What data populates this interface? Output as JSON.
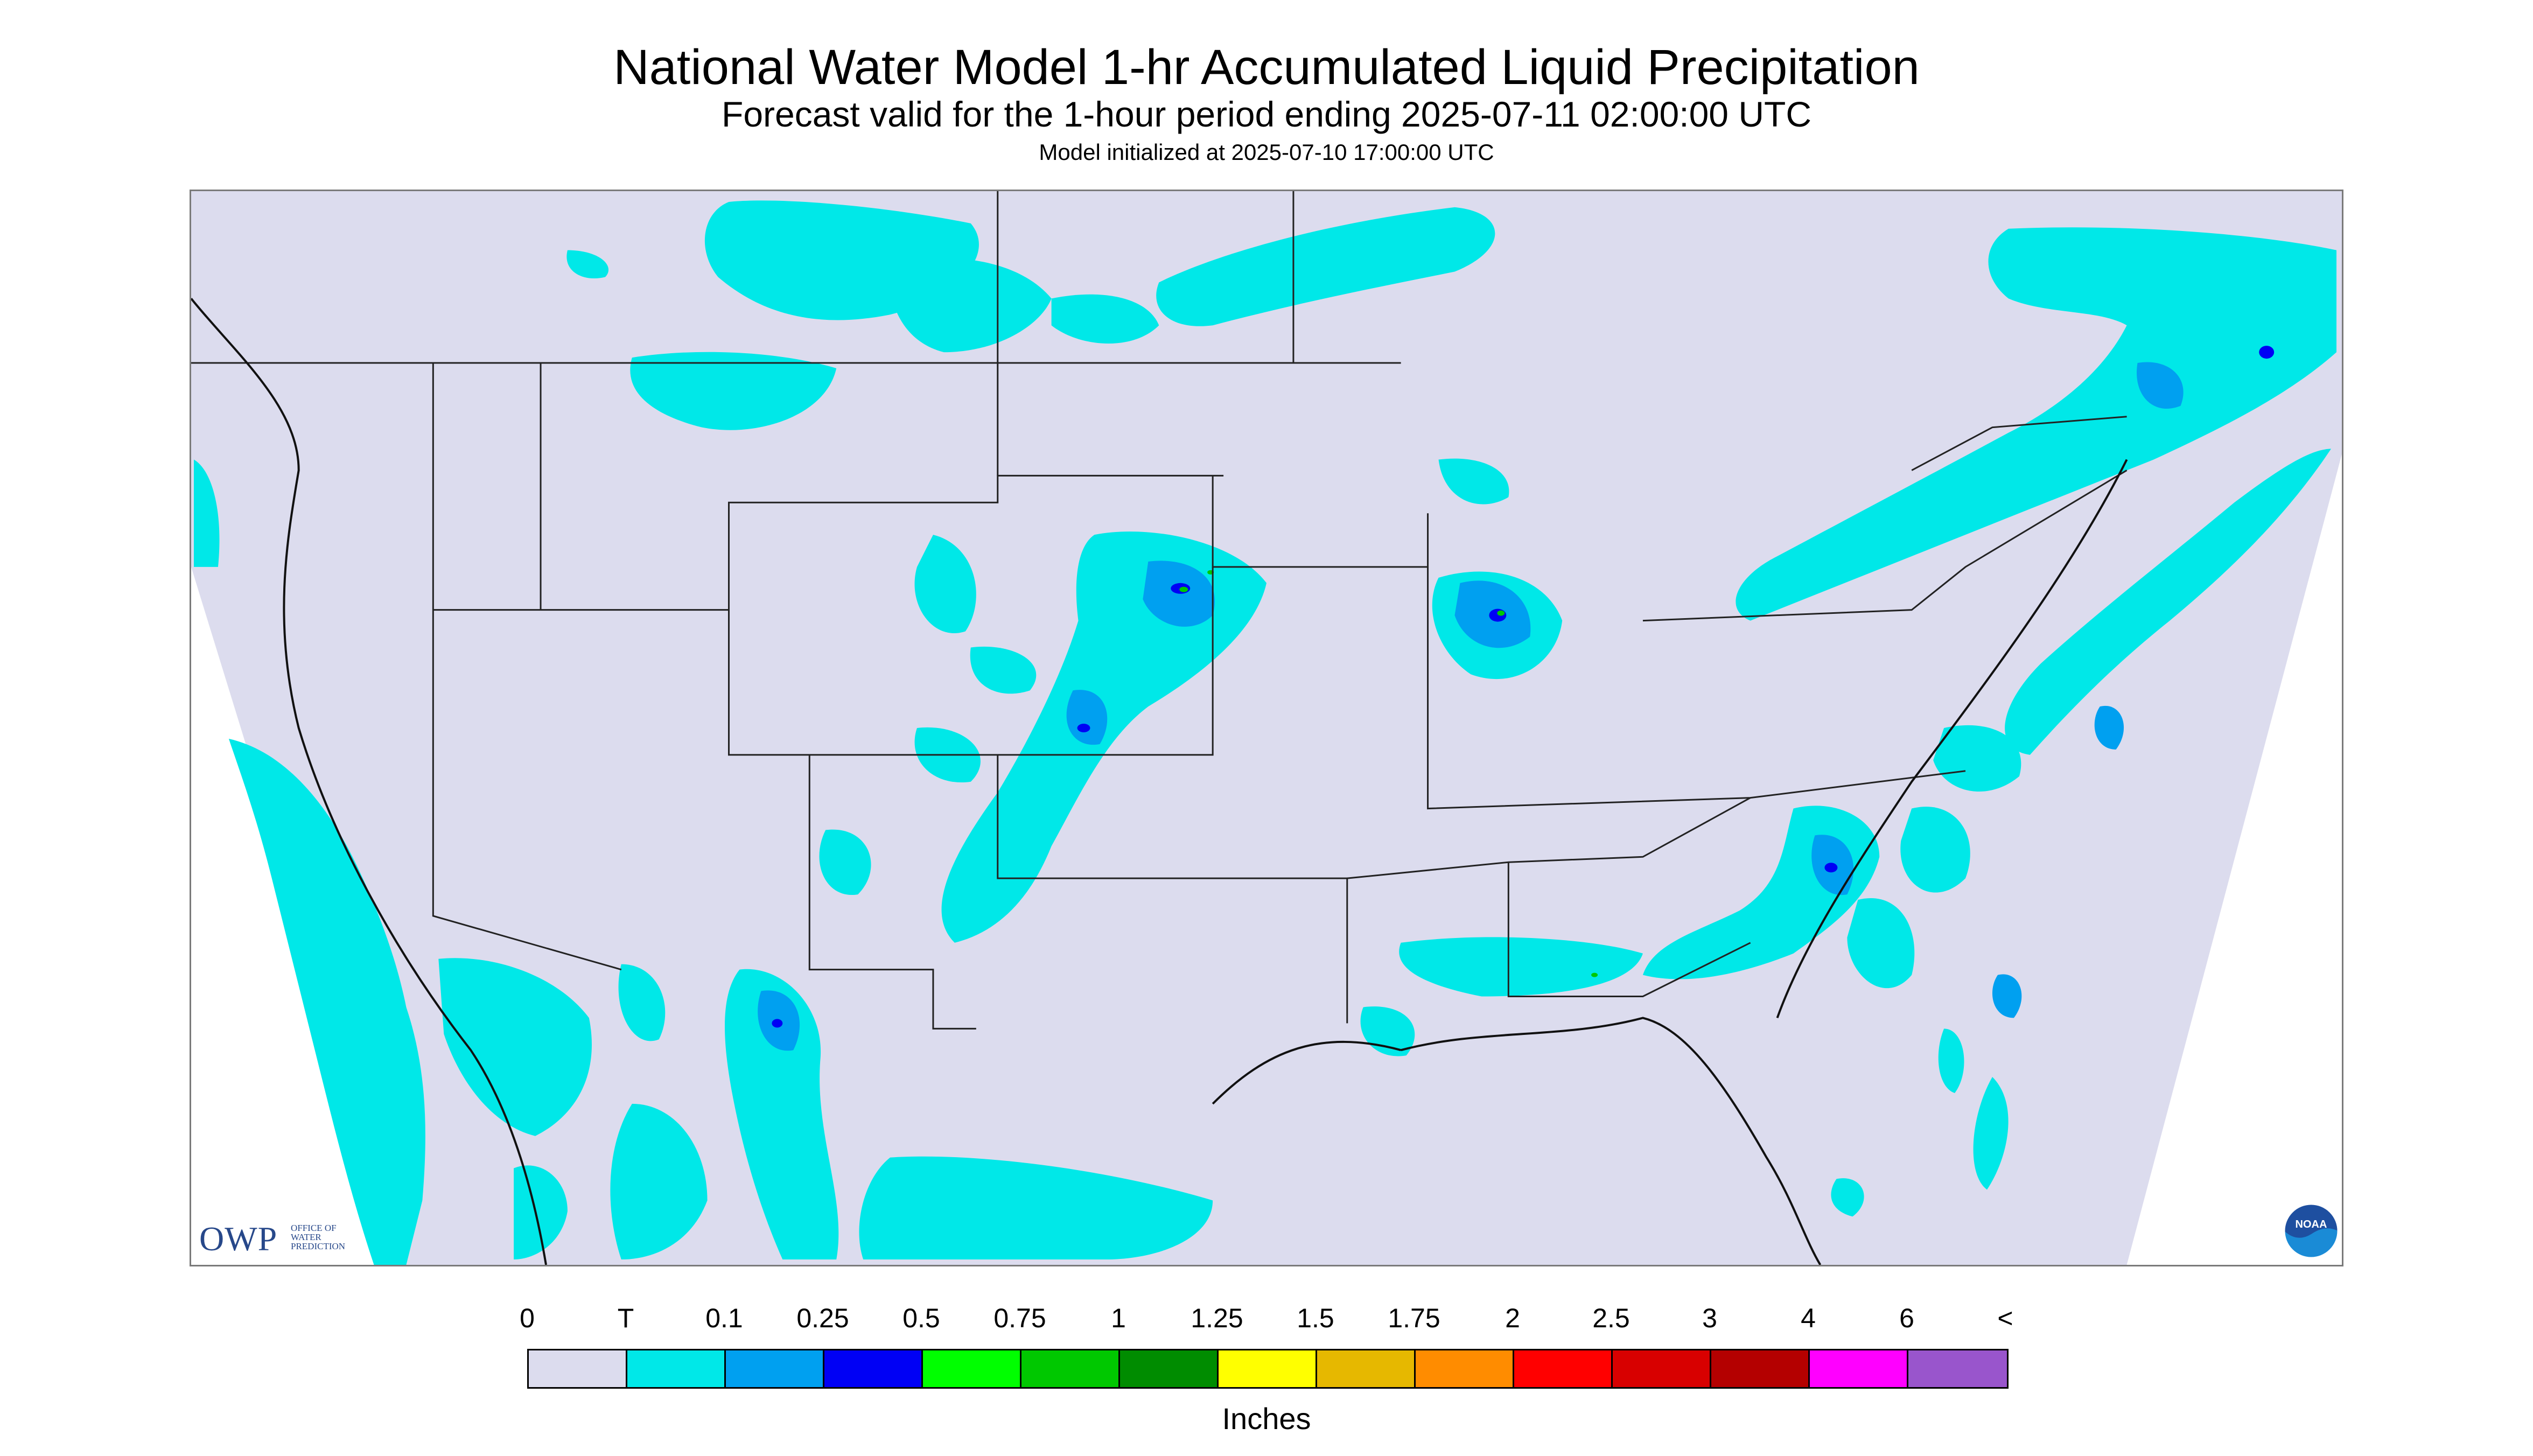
{
  "title": "National Water Model 1-hr Accumulated Liquid Precipitation",
  "subtitle": "Forecast valid for the 1-hour period ending 2025-07-11 02:00:00 UTC",
  "initialized": "Model initialized at 2025-07-10 17:00:00 UTC",
  "logos": {
    "owp_text": "OWP",
    "owp_sub": [
      "OFFICE OF",
      "WATER",
      "PREDICTION"
    ],
    "noaa_text": "NOAA"
  },
  "legend": {
    "labels": [
      "0",
      "T",
      "0.1",
      "0.25",
      "0.5",
      "0.75",
      "1",
      "1.25",
      "1.5",
      "1.75",
      "2",
      "2.5",
      "3",
      "4",
      "6",
      "<"
    ],
    "colors": [
      "#dcdcee",
      "#00e8e8",
      "#00a0f0",
      "#0000f5",
      "#00ff00",
      "#00c800",
      "#008c00",
      "#ffff00",
      "#e6b800",
      "#ff8c00",
      "#ff0000",
      "#d80000",
      "#b40000",
      "#ff00ff",
      "#9955cc"
    ],
    "units": "Inches"
  },
  "colors": {
    "land_background": "#dcdcee",
    "trace": "#00e8e8",
    "light": "#00a0f0",
    "moderate": "#0000f5",
    "heavy": "#00c800",
    "boundary": "#000000"
  }
}
